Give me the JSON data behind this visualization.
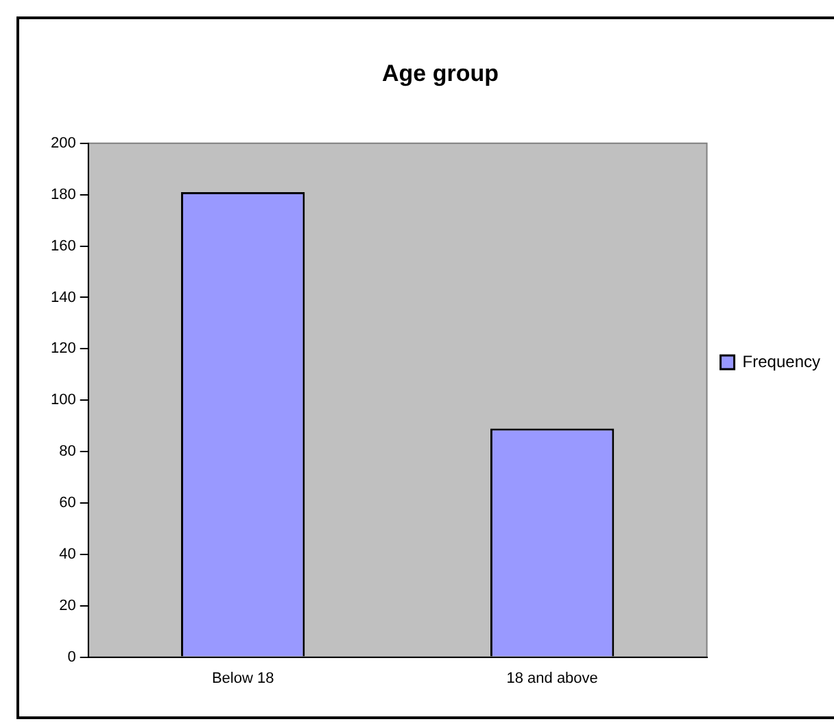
{
  "chart_data": {
    "type": "bar",
    "title": "Age group",
    "categories": [
      "Below 18",
      "18 and above"
    ],
    "series": [
      {
        "name": "Frequency",
        "color": "#9999ff",
        "values": [
          181,
          89
        ]
      }
    ],
    "ylim": [
      0,
      200
    ],
    "yticks": [
      0,
      20,
      40,
      60,
      80,
      100,
      120,
      140,
      160,
      180,
      200
    ],
    "grid": false,
    "legend": "right"
  }
}
